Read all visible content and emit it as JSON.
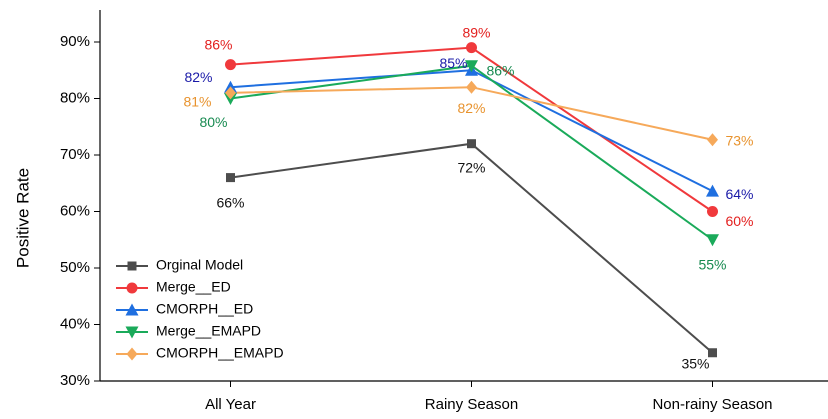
{
  "chart_data": {
    "type": "line",
    "y_label": "Positive Rate",
    "categories": [
      "All Year",
      "Rainy Season",
      "Non-rainy Season"
    ],
    "ylim": [
      30,
      95
    ],
    "yticks": [
      {
        "value": 30,
        "label": "30%"
      },
      {
        "value": 40,
        "label": "40%"
      },
      {
        "value": 50,
        "label": "50%"
      },
      {
        "value": 60,
        "label": "60%"
      },
      {
        "value": 70,
        "label": "70%"
      },
      {
        "value": 80,
        "label": "80%"
      },
      {
        "value": 90,
        "label": "90%"
      }
    ],
    "legend": "lower left",
    "series": [
      {
        "name": "Orginal Model",
        "color": "#4d4d4d",
        "label_color": "#111111",
        "marker": "square",
        "values": [
          66,
          72,
          35
        ],
        "value_labels": [
          "66%",
          "72%",
          "35%"
        ]
      },
      {
        "name": "Merge__ED",
        "color": "#f0393c",
        "label_color": "#e3201f",
        "marker": "circle",
        "values": [
          86,
          89,
          60
        ],
        "value_labels": [
          "86%",
          "89%",
          "60%"
        ]
      },
      {
        "name": "CMORPH__ED",
        "color": "#1f6fe0",
        "label_color": "#1a1aa8",
        "marker": "triangle-up",
        "values": [
          82,
          85,
          63.6
        ],
        "value_labels": [
          "82%",
          "85%",
          "64%"
        ]
      },
      {
        "name": "Merge__EMAPD",
        "color": "#1aaa5a",
        "label_color": "#178a50",
        "marker": "triangle-down",
        "values": [
          80,
          85.8,
          55
        ],
        "value_labels": [
          "80%",
          "86%",
          "55%"
        ]
      },
      {
        "name": "CMORPH__EMAPD",
        "color": "#f6a95a",
        "label_color": "#e8932e",
        "marker": "diamond",
        "values": [
          81,
          82,
          72.7
        ],
        "value_labels": [
          "81%",
          "82%",
          "73%"
        ]
      }
    ]
  }
}
